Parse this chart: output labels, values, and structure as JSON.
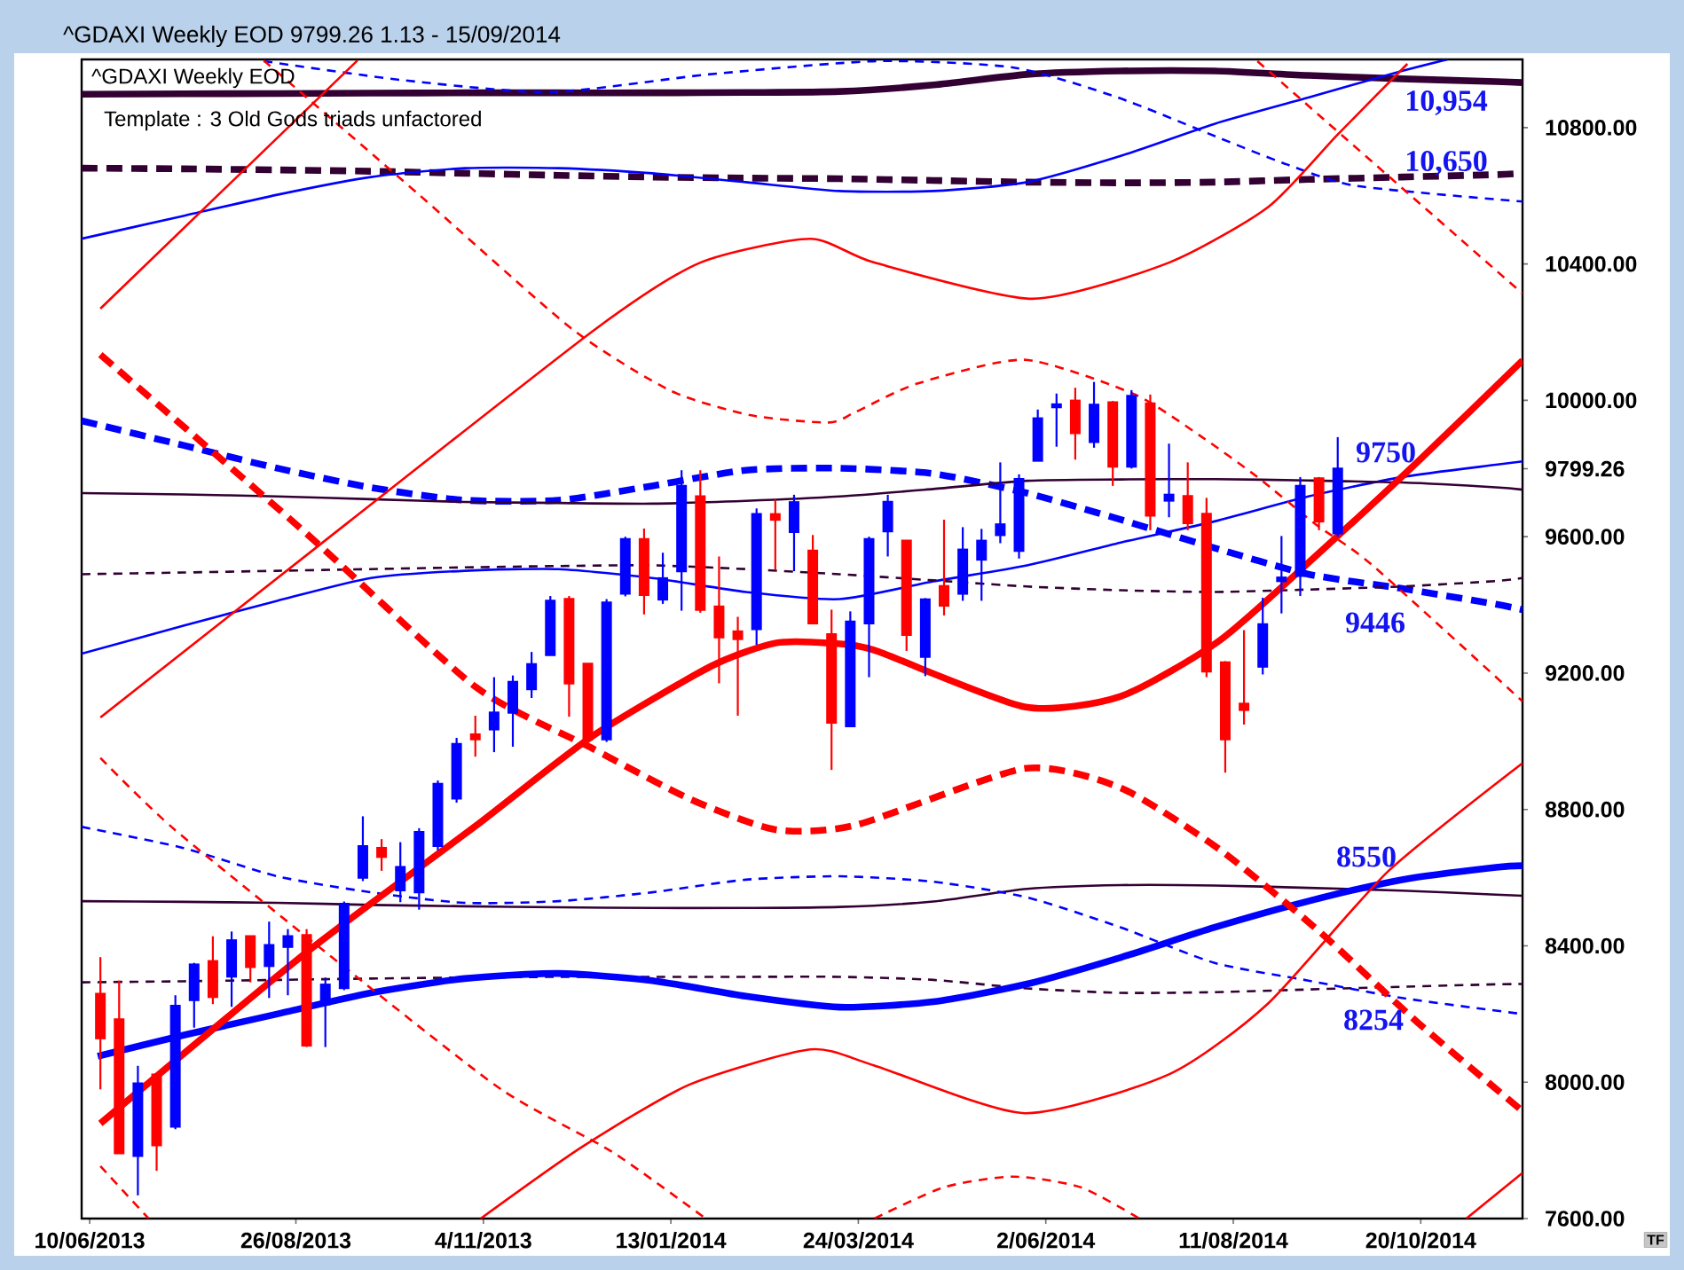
{
  "chart_data": {
    "type": "candlestick",
    "title": "^GDAXI Weekly EOD 9799.26 1.13 - 15/09/2014",
    "subtitle": "^GDAXI Weekly EOD",
    "x": [
      "2013-06-14",
      "2013-06-21",
      "2013-06-28",
      "2013-07-05",
      "2013-07-12",
      "2013-07-19",
      "2013-07-26",
      "2013-08-02",
      "2013-08-09",
      "2013-08-16",
      "2013-08-23",
      "2013-08-30",
      "2013-09-06",
      "2013-09-13",
      "2013-09-20",
      "2013-09-27",
      "2013-10-04",
      "2013-10-11",
      "2013-10-18",
      "2013-10-25",
      "2013-11-01",
      "2013-11-08",
      "2013-11-15",
      "2013-11-22",
      "2013-11-29",
      "2013-12-06",
      "2013-12-13",
      "2013-12-20",
      "2013-12-27",
      "2014-01-03",
      "2014-01-10",
      "2014-01-17",
      "2014-01-24",
      "2014-01-31",
      "2014-02-07",
      "2014-02-14",
      "2014-02-21",
      "2014-02-28",
      "2014-03-07",
      "2014-03-14",
      "2014-03-21",
      "2014-03-28",
      "2014-04-04",
      "2014-04-11",
      "2014-04-18",
      "2014-04-25",
      "2014-05-02",
      "2014-05-09",
      "2014-05-16",
      "2014-05-23",
      "2014-05-30",
      "2014-06-06",
      "2014-06-13",
      "2014-06-20",
      "2014-06-27",
      "2014-07-04",
      "2014-07-11",
      "2014-07-18",
      "2014-07-25",
      "2014-08-01",
      "2014-08-08",
      "2014-08-15",
      "2014-08-22",
      "2014-08-29",
      "2014-09-05",
      "2014-09-12",
      "2014-09-19"
    ],
    "ohlc": [
      [
        8259,
        8367,
        7979,
        8129
      ],
      [
        8184,
        8298,
        7792,
        7792
      ],
      [
        7784,
        8048,
        7668,
        7996
      ],
      [
        8022,
        8022,
        7740,
        7815
      ],
      [
        7870,
        8255,
        7862,
        8224
      ],
      [
        8241,
        8350,
        8160,
        8345
      ],
      [
        8355,
        8428,
        8229,
        8250
      ],
      [
        8310,
        8442,
        8221,
        8416
      ],
      [
        8428,
        8428,
        8293,
        8338
      ],
      [
        8341,
        8471,
        8247,
        8402
      ],
      [
        8397,
        8449,
        8255,
        8428
      ],
      [
        8431,
        8449,
        8103,
        8108
      ],
      [
        8229,
        8307,
        8103,
        8286
      ],
      [
        8276,
        8530,
        8270,
        8523
      ],
      [
        8600,
        8780,
        8590,
        8692
      ],
      [
        8687,
        8713,
        8620,
        8661
      ],
      [
        8563,
        8704,
        8528,
        8631
      ],
      [
        8557,
        8745,
        8506,
        8734
      ],
      [
        8693,
        8885,
        8680,
        8875
      ],
      [
        8832,
        9010,
        8820,
        8992
      ],
      [
        9020,
        9075,
        8955,
        9006
      ],
      [
        9035,
        9188,
        8968,
        9084
      ],
      [
        9084,
        9193,
        8984,
        9174
      ],
      [
        9153,
        9262,
        9127,
        9226
      ],
      [
        9253,
        9426,
        9253,
        9412
      ],
      [
        9417,
        9426,
        9072,
        9170
      ],
      [
        9227,
        9227,
        9000,
        9006
      ],
      [
        9006,
        9417,
        8998,
        9407
      ],
      [
        9433,
        9600,
        9425,
        9593
      ],
      [
        9593,
        9624,
        9372,
        9429
      ],
      [
        9416,
        9553,
        9403,
        9478
      ],
      [
        9499,
        9795,
        9383,
        9749
      ],
      [
        9718,
        9795,
        9377,
        9386
      ],
      [
        9395,
        9542,
        9170,
        9305
      ],
      [
        9322,
        9365,
        9075,
        9300
      ],
      [
        9329,
        9683,
        9283,
        9666
      ],
      [
        9666,
        9709,
        9502,
        9650
      ],
      [
        9614,
        9723,
        9499,
        9701
      ],
      [
        9559,
        9605,
        9346,
        9346
      ],
      [
        9314,
        9386,
        8916,
        9055
      ],
      [
        9044,
        9381,
        9044,
        9351
      ],
      [
        9346,
        9600,
        9188,
        9593
      ],
      [
        9616,
        9723,
        9542,
        9702
      ],
      [
        9588,
        9590,
        9265,
        9312
      ],
      [
        9248,
        9420,
        9191,
        9416
      ],
      [
        9455,
        9650,
        9369,
        9398
      ],
      [
        9433,
        9628,
        9412,
        9562
      ],
      [
        9533,
        9623,
        9412,
        9588
      ],
      [
        9605,
        9818,
        9581,
        9636
      ],
      [
        9559,
        9783,
        9536,
        9769
      ],
      [
        9823,
        9973,
        9823,
        9947
      ],
      [
        9980,
        10020,
        9864,
        9988
      ],
      [
        9999,
        10037,
        9826,
        9904
      ],
      [
        9878,
        10054,
        9861,
        9987
      ],
      [
        9994,
        9998,
        9749,
        9806
      ],
      [
        9806,
        10030,
        9800,
        10013
      ],
      [
        9991,
        10017,
        9619,
        9662
      ],
      [
        9706,
        9873,
        9657,
        9723
      ],
      [
        9719,
        9818,
        9619,
        9640
      ],
      [
        9667,
        9714,
        9188,
        9205
      ],
      [
        9231,
        9235,
        8908,
        9006
      ],
      [
        9110,
        9326,
        9049,
        9092
      ],
      [
        9219,
        9421,
        9196,
        9343
      ],
      [
        9470,
        9602,
        9375,
        9480
      ],
      [
        9485,
        9775,
        9426,
        9749
      ],
      [
        9771,
        9775,
        9619,
        9645
      ],
      [
        9610,
        9892,
        9600,
        9799.26
      ]
    ],
    "colors": [
      "#ff0000",
      "#ff0000",
      "#0000ff",
      "#ff0000",
      "#0000ff",
      "#0000ff",
      "#ff0000",
      "#0000ff",
      "#ff0000",
      "#0000ff",
      "#0000ff",
      "#ff0000",
      "#0000ff",
      "#0000ff",
      "#0000ff",
      "#ff0000",
      "#0000ff",
      "#0000ff",
      "#0000ff",
      "#0000ff",
      "#ff0000",
      "#0000ff",
      "#0000ff",
      "#0000ff",
      "#0000ff",
      "#ff0000",
      "#ff0000",
      "#0000ff",
      "#0000ff",
      "#ff0000",
      "#0000ff",
      "#0000ff",
      "#ff0000",
      "#ff0000",
      "#ff0000",
      "#0000ff",
      "#ff0000",
      "#0000ff",
      "#ff0000",
      "#ff0000",
      "#0000ff",
      "#0000ff",
      "#0000ff",
      "#ff0000",
      "#0000ff",
      "#ff0000",
      "#0000ff",
      "#0000ff",
      "#0000ff",
      "#0000ff",
      "#0000ff",
      "#0000ff",
      "#ff0000",
      "#0000ff",
      "#ff0000",
      "#0000ff",
      "#ff0000",
      "#0000ff",
      "#ff0000",
      "#ff0000",
      "#ff0000",
      "#ff0000",
      "#0000ff",
      "#0000ff",
      "#0000ff",
      "#ff0000",
      "#0000ff"
    ],
    "series": [
      {
        "type": "line",
        "color": "#330033",
        "line_style": "solid",
        "x": [
          "2013-06-07",
          "2013-07-15",
          "2013-08-19",
          "2013-09-23",
          "2013-10-28",
          "2013-12-02",
          "2014-01-06",
          "2014-02-10",
          "2014-03-17",
          "2014-04-21",
          "2014-05-26",
          "2014-06-30",
          "2014-08-04",
          "2014-09-08",
          "2014-10-13",
          "2014-11-17",
          "2014-11-27"
        ],
        "values": [
          10898,
          10899,
          10900,
          10901,
          10902,
          10902,
          10902,
          10903,
          10906,
          10925,
          10956,
          10966,
          10966,
          10953,
          10943,
          10935,
          10932
        ]
      },
      {
        "type": "line",
        "color": "#330033",
        "line_style": "dashed",
        "x": [
          "2013-06-07",
          "2013-07-15",
          "2013-08-19",
          "2013-09-23",
          "2013-10-28",
          "2013-12-02",
          "2014-01-06",
          "2014-02-10",
          "2014-03-17",
          "2014-04-21",
          "2014-05-26",
          "2014-06-30",
          "2014-08-04",
          "2014-09-08",
          "2014-10-13",
          "2014-11-17",
          "2014-11-27"
        ],
        "values": [
          10681,
          10679,
          10676,
          10672,
          10666,
          10660,
          10655,
          10652,
          10650,
          10645,
          10640,
          10638,
          10640,
          10648,
          10655,
          10662,
          10666
        ]
      },
      {
        "type": "line",
        "color": "#0000ff",
        "line_style": "solid",
        "x": [
          "2013-06-07",
          "2013-07-15",
          "2013-08-19",
          "2013-09-23",
          "2013-10-28",
          "2013-12-02",
          "2014-01-06",
          "2014-02-10",
          "2014-03-17",
          "2014-04-21",
          "2014-05-26",
          "2014-06-30",
          "2014-08-04",
          "2014-09-08",
          "2014-10-13",
          "2014-10-30"
        ],
        "values": [
          10474,
          10541,
          10603,
          10655,
          10681,
          10681,
          10666,
          10640,
          10614,
          10614,
          10640,
          10717,
          10811,
          10888,
          10966,
          11000
        ]
      },
      {
        "type": "line",
        "color": "#0000ff",
        "line_style": "dashed",
        "x": [
          "2013-08-14",
          "2013-10-04",
          "2013-11-29",
          "2014-01-27",
          "2014-03-31",
          "2014-05-21",
          "2014-06-29",
          "2014-08-06",
          "2014-08-31",
          "2014-09-26",
          "2014-11-27"
        ],
        "values": [
          10995,
          10940,
          10904,
          10956,
          10995,
          10976,
          10888,
          10769,
          10692,
          10629,
          10583
        ]
      },
      {
        "type": "line",
        "color": "#0000ff",
        "line_style": "dashed",
        "x": [
          "2013-06-07",
          "2013-07-15",
          "2013-08-19",
          "2013-09-23",
          "2013-10-28",
          "2013-12-02",
          "2014-01-06",
          "2014-02-10",
          "2014-03-17",
          "2014-04-21",
          "2014-05-26",
          "2014-06-30",
          "2014-08-04",
          "2014-09-08",
          "2014-10-13",
          "2014-11-17",
          "2014-11-27"
        ],
        "values": [
          9940,
          9868,
          9801,
          9744,
          9707,
          9707,
          9749,
          9795,
          9801,
          9785,
          9728,
          9650,
          9567,
          9490,
          9448,
          9402,
          9386
        ]
      },
      {
        "type": "line",
        "color": "#0000ff",
        "line_style": "solid",
        "x": [
          "2013-06-07",
          "2013-07-15",
          "2013-08-19",
          "2013-09-23",
          "2013-10-28",
          "2013-12-02",
          "2014-01-06",
          "2014-02-10",
          "2014-03-17",
          "2014-04-21",
          "2014-05-26",
          "2014-06-30",
          "2014-08-04",
          "2014-09-08",
          "2014-10-13",
          "2014-11-17",
          "2014-11-27"
        ],
        "values": [
          9257,
          9339,
          9412,
          9479,
          9500,
          9505,
          9479,
          9438,
          9417,
          9469,
          9516,
          9583,
          9645,
          9718,
          9775,
          9811,
          9821
        ]
      },
      {
        "type": "line",
        "color": "#330033",
        "line_style": "solid",
        "x": [
          "2013-06-07",
          "2013-07-15",
          "2013-08-19",
          "2013-09-23",
          "2013-10-28",
          "2013-12-02",
          "2014-01-06",
          "2014-02-10",
          "2014-03-17",
          "2014-04-21",
          "2014-05-26",
          "2014-06-30",
          "2014-08-04",
          "2014-09-08",
          "2014-10-13",
          "2014-11-17",
          "2014-11-27"
        ],
        "values": [
          9728,
          9724,
          9718,
          9710,
          9702,
          9699,
          9697,
          9705,
          9718,
          9740,
          9764,
          9768,
          9769,
          9765,
          9759,
          9745,
          9738
        ]
      },
      {
        "type": "line",
        "color": "#330033",
        "line_style": "dashed",
        "x": [
          "2013-06-07",
          "2013-07-15",
          "2013-08-19",
          "2013-09-23",
          "2013-10-28",
          "2013-12-02",
          "2014-01-06",
          "2014-02-10",
          "2014-03-17",
          "2014-04-21",
          "2014-05-26",
          "2014-06-30",
          "2014-08-04",
          "2014-09-08",
          "2014-10-13",
          "2014-11-17",
          "2014-11-27"
        ],
        "values": [
          9490,
          9495,
          9500,
          9505,
          9510,
          9514,
          9516,
          9505,
          9490,
          9472,
          9454,
          9443,
          9438,
          9445,
          9454,
          9470,
          9479
        ]
      },
      {
        "type": "line",
        "color": "#330033",
        "line_style": "solid",
        "x": [
          "2013-06-07",
          "2013-07-15",
          "2013-08-19",
          "2013-09-23",
          "2013-10-28",
          "2013-12-02",
          "2014-01-06",
          "2014-02-10",
          "2014-03-17",
          "2014-04-21",
          "2014-05-26",
          "2014-06-30",
          "2014-08-04",
          "2014-09-08",
          "2014-10-13",
          "2014-11-17",
          "2014-11-27"
        ],
        "values": [
          8531,
          8529,
          8526,
          8520,
          8516,
          8513,
          8511,
          8511,
          8514,
          8530,
          8567,
          8578,
          8577,
          8570,
          8562,
          8550,
          8547
        ]
      },
      {
        "type": "line",
        "color": "#330033",
        "line_style": "dashed",
        "x": [
          "2013-06-07",
          "2013-07-15",
          "2013-08-19",
          "2013-09-23",
          "2013-10-28",
          "2013-12-02",
          "2014-01-06",
          "2014-02-10",
          "2014-03-17",
          "2014-04-21",
          "2014-05-26",
          "2014-06-30",
          "2014-08-04",
          "2014-09-08",
          "2014-10-13",
          "2014-11-17",
          "2014-11-27"
        ],
        "values": [
          8293,
          8296,
          8300,
          8304,
          8307,
          8309,
          8309,
          8309,
          8309,
          8300,
          8275,
          8262,
          8264,
          8272,
          8280,
          8287,
          8288
        ]
      },
      {
        "type": "line",
        "color": "#0000ff",
        "line_style": "solid",
        "x": [
          "2013-06-13",
          "2013-07-15",
          "2013-08-19",
          "2013-09-23",
          "2013-10-28",
          "2013-12-02",
          "2014-01-06",
          "2014-02-10",
          "2014-03-17",
          "2014-04-21",
          "2014-05-26",
          "2014-06-30",
          "2014-08-04",
          "2014-09-08",
          "2014-10-13",
          "2014-11-17",
          "2014-11-27"
        ],
        "values": [
          8076,
          8138,
          8200,
          8262,
          8304,
          8319,
          8298,
          8252,
          8220,
          8236,
          8288,
          8366,
          8454,
          8531,
          8594,
          8630,
          8635
        ]
      },
      {
        "type": "line",
        "color": "#0000ff",
        "line_style": "dashed",
        "x": [
          "2013-06-07",
          "2013-07-15",
          "2013-08-19",
          "2013-09-23",
          "2013-10-28",
          "2013-12-02",
          "2014-01-06",
          "2014-02-10",
          "2014-03-17",
          "2014-04-21",
          "2014-05-26",
          "2014-06-30",
          "2014-08-04",
          "2014-09-08",
          "2014-10-13",
          "2014-11-17",
          "2014-11-27"
        ],
        "values": [
          8749,
          8687,
          8604,
          8557,
          8526,
          8531,
          8557,
          8594,
          8604,
          8588,
          8542,
          8454,
          8350,
          8298,
          8247,
          8210,
          8200
        ]
      },
      {
        "type": "line",
        "color": "#ff0000",
        "line_style": "solid",
        "x": [
          "2013-06-14",
          "2013-08-30",
          "2013-11-01",
          "2013-12-14",
          "2014-01-28",
          "2014-02-21",
          "2014-03-13",
          "2014-03-30",
          "2014-05-25",
          "2014-06-30",
          "2014-08-06",
          "2014-09-12",
          "2014-10-19",
          "2014-11-27"
        ],
        "values": [
          7879,
          8381,
          8751,
          9011,
          9220,
          9288,
          9288,
          9267,
          9101,
          9132,
          9296,
          9552,
          9821,
          10117
        ]
      },
      {
        "type": "line",
        "color": "#ff0000",
        "line_style": "dashed",
        "x": [
          "2013-06-14",
          "2013-08-30",
          "2013-11-01",
          "2013-12-14",
          "2014-01-20",
          "2014-02-21",
          "2014-03-23",
          "2014-05-25",
          "2014-06-30",
          "2014-08-06",
          "2014-09-12",
          "2014-10-19",
          "2014-11-27"
        ],
        "values": [
          10134,
          9609,
          9160,
          8982,
          8831,
          8741,
          8754,
          8920,
          8863,
          8682,
          8443,
          8174,
          7915
        ]
      },
      {
        "type": "line",
        "color": "#ff0000",
        "line_style": "solid",
        "x": [
          "2013-06-14",
          "2013-09-18"
        ],
        "values": [
          10269,
          10997
        ]
      },
      {
        "type": "line",
        "color": "#ff0000",
        "line_style": "solid",
        "x": [
          "2013-06-14",
          "2013-09-15",
          "2013-12-16",
          "2014-01-24",
          "2014-03-06",
          "2014-03-30",
          "2014-05-28",
          "2014-07-18",
          "2014-08-24",
          "2014-09-19",
          "2014-10-15"
        ],
        "values": [
          9070,
          9645,
          10210,
          10404,
          10474,
          10404,
          10298,
          10404,
          10567,
          10780,
          10987
        ]
      },
      {
        "type": "line",
        "color": "#ff0000",
        "line_style": "dashed",
        "x": [
          "2013-08-14",
          "2013-10-11",
          "2013-12-07",
          "2014-01-13",
          "2014-02-12",
          "2014-03-13",
          "2014-03-23",
          "2014-04-15",
          "2014-05-25",
          "2014-07-05",
          "2014-07-30",
          "2014-08-20",
          "2014-09-11",
          "2014-10-02",
          "2014-11-27"
        ],
        "values": [
          10997,
          10603,
          10210,
          10028,
          9956,
          9935,
          9966,
          10049,
          10119,
          10018,
          9894,
          9775,
          9635,
          9516,
          9117
        ]
      },
      {
        "type": "line",
        "color": "#ff0000",
        "line_style": "dashed",
        "x": [
          "2013-06-14",
          "2013-07-12",
          "2013-09-17",
          "2013-11-11",
          "2013-12-22",
          "2014-01-26"
        ],
        "values": [
          8951,
          8739,
          8313,
          7977,
          7796,
          7600
        ]
      },
      {
        "type": "line",
        "color": "#ff0000",
        "line_style": "solid",
        "x": [
          "2013-11-03",
          "2013-12-11",
          "2014-01-20",
          "2014-03-06",
          "2014-03-30",
          "2014-05-25",
          "2014-07-18",
          "2014-08-24",
          "2014-10-08",
          "2014-11-27"
        ],
        "values": [
          7600,
          7811,
          7993,
          8096,
          8049,
          7909,
          8023,
          8231,
          8620,
          8936
        ]
      },
      {
        "type": "line",
        "color": "#ff0000",
        "line_style": "dashed",
        "x": [
          "2014-08-20",
          "2014-11-27"
        ],
        "values": [
          10995,
          10313
        ]
      },
      {
        "type": "line",
        "color": "#ff0000",
        "line_style": "solid",
        "x": [
          "2014-11-06",
          "2014-11-27"
        ],
        "values": [
          7600,
          7734
        ]
      },
      {
        "type": "line",
        "color": "#ff0000",
        "line_style": "dashed",
        "x": [
          "2014-03-30",
          "2014-04-25",
          "2014-05-21",
          "2014-06-15",
          "2014-07-07"
        ],
        "values": [
          7600,
          7692,
          7723,
          7692,
          7600
        ]
      },
      {
        "type": "line",
        "color": "#ff0000",
        "line_style": "dashed",
        "x": [
          "2013-06-14",
          "2013-07-02"
        ],
        "values": [
          7754,
          7600
        ]
      }
    ],
    "xlim": [
      "2013-06-07",
      "2014-11-27"
    ],
    "ylim": [
      7600,
      11000
    ],
    "xticks": [
      {
        "value": "2013-06-10",
        "label": "10/06/2013"
      },
      {
        "value": "2013-08-26",
        "label": "26/08/2013"
      },
      {
        "value": "2013-11-04",
        "label": "4/11/2013"
      },
      {
        "value": "2014-01-13",
        "label": "13/01/2014"
      },
      {
        "value": "2014-03-24",
        "label": "24/03/2014"
      },
      {
        "value": "2014-06-02",
        "label": "2/06/2014"
      },
      {
        "value": "2014-08-11",
        "label": "11/08/2014"
      },
      {
        "value": "2014-10-20",
        "label": "20/10/2014"
      }
    ],
    "yticks": [
      {
        "value": 7600,
        "label": "7600.00"
      },
      {
        "value": 8000,
        "label": "8000.00"
      },
      {
        "value": 8400,
        "label": "8400.00"
      },
      {
        "value": 8800,
        "label": "8800.00"
      },
      {
        "value": 9200,
        "label": "9200.00"
      },
      {
        "value": 9600,
        "label": "9600.00"
      },
      {
        "value": 9799.26,
        "label": "9799.26"
      },
      {
        "value": 10000,
        "label": "10000.00"
      },
      {
        "value": 10400,
        "label": "10400.00"
      },
      {
        "value": 10800,
        "label": "10800.00"
      }
    ],
    "annotations": [
      "Template : 3 Old Gods triads unfactored",
      "10,954",
      "10,650",
      "9750",
      "9446",
      "8550",
      "8254",
      "TF"
    ]
  }
}
